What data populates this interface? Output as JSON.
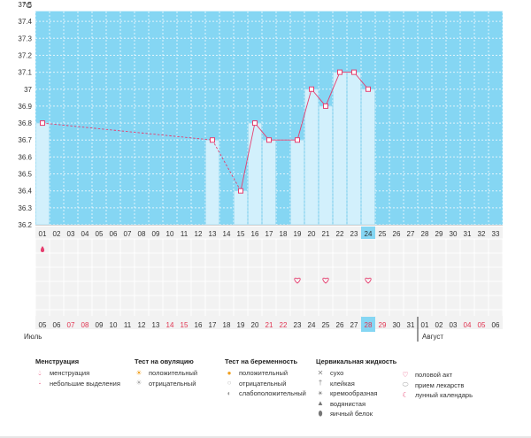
{
  "chart_data": {
    "type": "bar",
    "y_unit": "°C",
    "ylim": [
      36.2,
      37.5
    ],
    "yticks": [
      "37.5",
      "37.4",
      "37.3",
      "37.2",
      "37.1",
      "37",
      "36.9",
      "36.8",
      "36.7",
      "36.6",
      "36.5",
      "36.4",
      "36.3",
      "36.2"
    ],
    "cycle_days": [
      "01",
      "02",
      "03",
      "04",
      "05",
      "06",
      "07",
      "08",
      "09",
      "10",
      "11",
      "12",
      "13",
      "14",
      "15",
      "16",
      "17",
      "18",
      "19",
      "20",
      "21",
      "22",
      "23",
      "24",
      "25",
      "26",
      "27",
      "28",
      "29",
      "30",
      "31",
      "32",
      "33"
    ],
    "calendar_dates": [
      "05",
      "06",
      "07",
      "08",
      "09",
      "10",
      "11",
      "12",
      "13",
      "14",
      "15",
      "16",
      "17",
      "18",
      "19",
      "20",
      "21",
      "22",
      "23",
      "24",
      "25",
      "26",
      "27",
      "28",
      "29",
      "30",
      "31",
      "01",
      "02",
      "03",
      "04",
      "05",
      "06"
    ],
    "weekend_calendar_indices": [
      2,
      3,
      9,
      10,
      16,
      17,
      23,
      24,
      30,
      31
    ],
    "today_index": 23,
    "month_labels": [
      {
        "label": "Июль",
        "index": 0
      },
      {
        "label": "Август",
        "index": 27
      }
    ],
    "temperatures": [
      {
        "day": 1,
        "value": 36.8
      },
      {
        "day": 13,
        "value": 36.7
      },
      {
        "day": 15,
        "value": 36.4
      },
      {
        "day": 16,
        "value": 36.8
      },
      {
        "day": 17,
        "value": 36.7
      },
      {
        "day": 19,
        "value": 36.7
      },
      {
        "day": 20,
        "value": 37.0
      },
      {
        "day": 21,
        "value": 36.9
      },
      {
        "day": 22,
        "value": 37.1
      },
      {
        "day": 23,
        "value": 37.1
      },
      {
        "day": 24,
        "value": 37.0
      }
    ],
    "dashed_segments": [
      [
        0,
        1
      ],
      [
        1,
        2
      ]
    ],
    "markers": {
      "menstruation": [
        1
      ],
      "intercourse": [
        19,
        21,
        24
      ]
    }
  },
  "legend": {
    "groups": [
      {
        "title": "Менструация",
        "items": [
          {
            "icon": "drop-icon",
            "label": "менструация"
          },
          {
            "icon": "small-drop-icon",
            "label": "небольшие выделения"
          }
        ]
      },
      {
        "title": "Тест на овуляцию",
        "items": [
          {
            "icon": "sun-positive-icon",
            "label": "положительный"
          },
          {
            "icon": "sun-negative-icon",
            "label": "отрицательный"
          }
        ]
      },
      {
        "title": "Тест на беременность",
        "items": [
          {
            "icon": "test-positive-icon",
            "label": "положительный"
          },
          {
            "icon": "test-negative-icon",
            "label": "отрицательный"
          },
          {
            "icon": "test-weak-icon",
            "label": "слабоположительный"
          }
        ]
      },
      {
        "title": "Цервикальная жидкость",
        "items": [
          {
            "icon": "cross-icon",
            "label": "сухо"
          },
          {
            "icon": "sticky-icon",
            "label": "клейкая"
          },
          {
            "icon": "creamy-icon",
            "label": "кремообразная"
          },
          {
            "icon": "watery-icon",
            "label": "водянистая"
          },
          {
            "icon": "eggwhite-icon",
            "label": "яичный белок"
          }
        ]
      },
      {
        "title": "",
        "items": [
          {
            "icon": "heart-icon",
            "label": "половой акт"
          },
          {
            "icon": "pill-icon",
            "label": "прием лекарств"
          },
          {
            "icon": "moon-icon",
            "label": "лунный календарь"
          }
        ]
      }
    ]
  },
  "colors": {
    "plot_bg": "#85d6f3",
    "top_band": "#ffffff",
    "bar_fill": "#d2f0fc",
    "bar_stroke": "#9fdaf2",
    "line": "#e63d6e",
    "marker_stroke": "#e63d6e",
    "grid": "#ffffff",
    "weekend_text": "#e03552",
    "today_bg": "#85d6f3",
    "rows_bg": "#f2f2f2"
  }
}
